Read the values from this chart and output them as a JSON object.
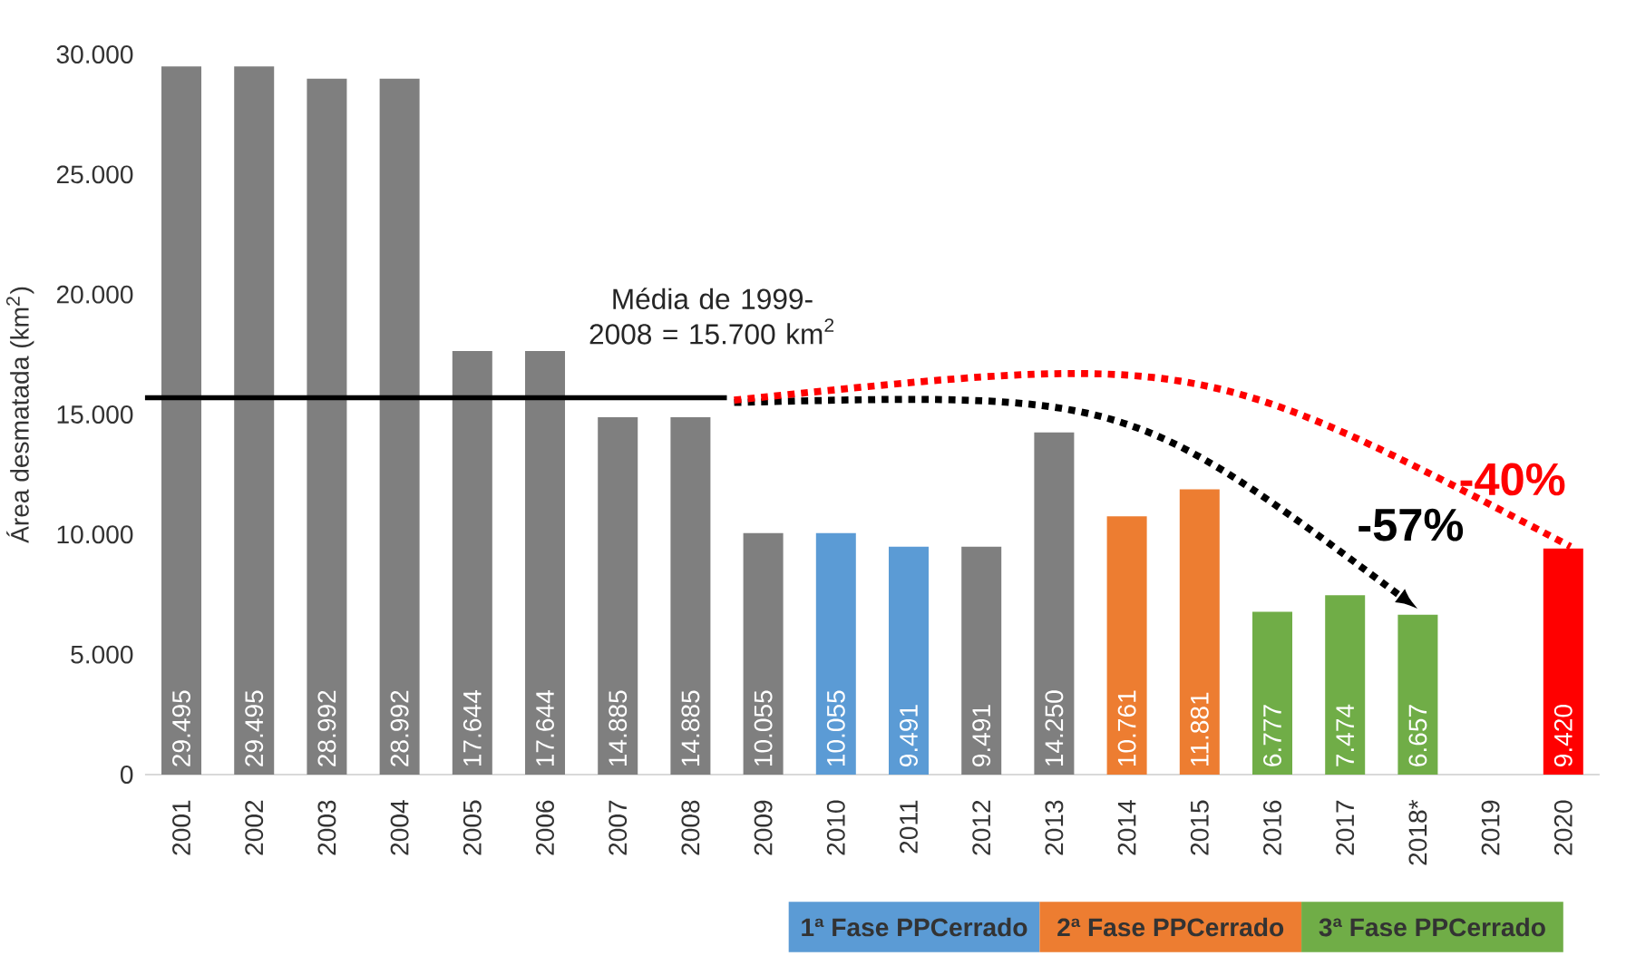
{
  "chart_data": {
    "type": "bar",
    "ylabel": "Área desmatada (km$^{2}$)",
    "categories": [
      "2001",
      "2002",
      "2003",
      "2004",
      "2005",
      "2006",
      "2007",
      "2008",
      "2009",
      "2010",
      "2011",
      "2012",
      "2013",
      "2014",
      "2015",
      "2016",
      "2017",
      "2018*",
      "2019",
      "2020"
    ],
    "values": [
      29495,
      29495,
      28992,
      28992,
      17644,
      17644,
      14885,
      14885,
      10055,
      10055,
      9491,
      9491,
      14250,
      10761,
      11881,
      6777,
      7474,
      6657,
      null,
      9420
    ],
    "value_labels": [
      "29.495",
      "29.495",
      "28.992",
      "28.992",
      "17.644",
      "17.644",
      "14.885",
      "14.885",
      "10.055",
      "10.055",
      "9.491",
      "9.491",
      "14.250",
      "10.761",
      "11.881",
      "6.777",
      "7.474",
      "6.657",
      null,
      "9.420"
    ],
    "colors": [
      "#7f7f7f",
      "#7f7f7f",
      "#7f7f7f",
      "#7f7f7f",
      "#7f7f7f",
      "#7f7f7f",
      "#7f7f7f",
      "#7f7f7f",
      "#7f7f7f",
      "#5b9bd5",
      "#5b9bd5",
      "#7f7f7f",
      "#7f7f7f",
      "#ed7d31",
      "#ed7d31",
      "#70ad47",
      "#70ad47",
      "#70ad47",
      "#70ad47",
      "#ff0000"
    ],
    "ylim": [
      0,
      30000
    ],
    "yticks": [
      {
        "value": 0,
        "label": "0"
      },
      {
        "value": 5000,
        "label": "5.000"
      },
      {
        "value": 10000,
        "label": "10.000"
      },
      {
        "value": 15000,
        "label": "15.000"
      },
      {
        "value": 20000,
        "label": "20.000"
      },
      {
        "value": 25000,
        "label": "25.000"
      },
      {
        "value": 30000,
        "label": "30.000"
      }
    ],
    "ref_lines": [
      {
        "axis": "y",
        "value": 15700,
        "label": "Média de 1999-2008 = 15.700 km$^{2}$",
        "color": "#000000"
      }
    ],
    "annotations": [
      "-57%",
      "-40%",
      "1ª Fase PPCerrado",
      "2ª Fase PPCerrado",
      "3ª Fase PPCerrado"
    ],
    "grid": false
  }
}
